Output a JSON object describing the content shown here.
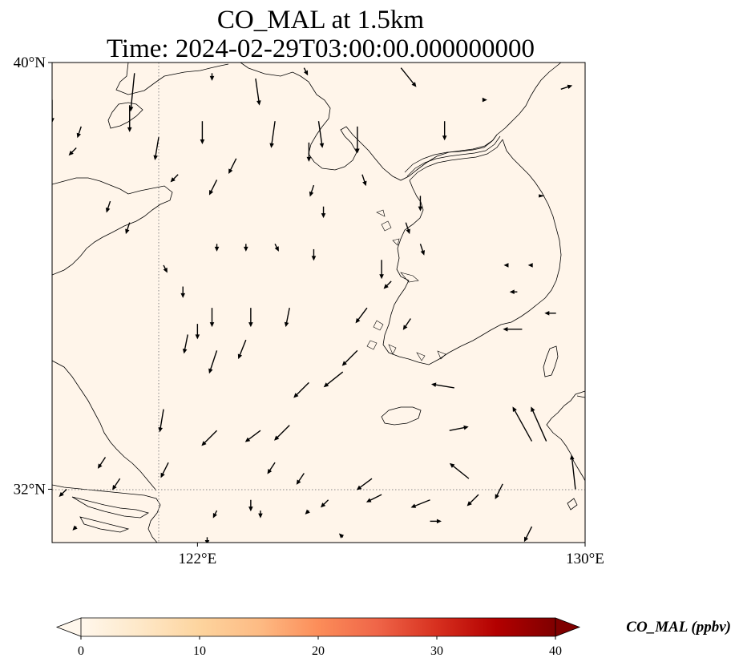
{
  "title": {
    "line1": "CO_MAL at 1.5km",
    "line2": "Time: 2024-02-29T03:00:00.000000000"
  },
  "map": {
    "extent": {
      "lon_min": 119,
      "lon_max": 130,
      "lat_min": 31,
      "lat_max": 40
    },
    "background_color": "#fff5ea",
    "gridlines": {
      "lons": [
        122
      ],
      "lats": [
        32
      ],
      "style": "dotted",
      "color": "#888888"
    },
    "lat_ticks": [
      {
        "value": 40,
        "label": "40°N"
      },
      {
        "value": 32,
        "label": "32°N"
      }
    ],
    "lon_ticks": [
      {
        "value": 122,
        "label": "122°E"
      },
      {
        "value": 130,
        "label": "130°E"
      }
    ],
    "features": [
      "coastline",
      "country borders"
    ],
    "wind_vectors": [
      {
        "lon": 120.7,
        "lat": 39.8,
        "u": -0.1,
        "v": -1.0
      },
      {
        "lon": 122.3,
        "lat": 39.8,
        "u": 0.0,
        "v": -0.2
      },
      {
        "lon": 123.2,
        "lat": 39.7,
        "u": 0.1,
        "v": -0.7
      },
      {
        "lon": 124.2,
        "lat": 39.9,
        "u": 0.1,
        "v": -0.2
      },
      {
        "lon": 126.2,
        "lat": 39.9,
        "u": 0.4,
        "v": -0.5
      },
      {
        "lon": 127.9,
        "lat": 39.3,
        "u": 0.1,
        "v": 0.0
      },
      {
        "lon": 129.5,
        "lat": 39.5,
        "u": 0.3,
        "v": 0.1
      },
      {
        "lon": 119.0,
        "lat": 39.3,
        "u": 0.0,
        "v": -0.6
      },
      {
        "lon": 120.6,
        "lat": 39.2,
        "u": 0.0,
        "v": -0.7
      },
      {
        "lon": 119.6,
        "lat": 38.8,
        "u": -0.1,
        "v": -0.3
      },
      {
        "lon": 122.1,
        "lat": 38.9,
        "u": 0.0,
        "v": -0.6
      },
      {
        "lon": 123.6,
        "lat": 38.9,
        "u": -0.1,
        "v": -0.7
      },
      {
        "lon": 124.5,
        "lat": 38.9,
        "u": 0.1,
        "v": -0.7
      },
      {
        "lon": 125.3,
        "lat": 38.8,
        "u": 0.0,
        "v": -0.7
      },
      {
        "lon": 127.1,
        "lat": 38.9,
        "u": 0.0,
        "v": -0.5
      },
      {
        "lon": 121.2,
        "lat": 38.6,
        "u": -0.1,
        "v": -0.6
      },
      {
        "lon": 119.5,
        "lat": 38.4,
        "u": -0.2,
        "v": -0.2
      },
      {
        "lon": 122.8,
        "lat": 38.2,
        "u": -0.2,
        "v": -0.4
      },
      {
        "lon": 124.3,
        "lat": 38.5,
        "u": 0.0,
        "v": -0.5
      },
      {
        "lon": 122.4,
        "lat": 37.8,
        "u": -0.2,
        "v": -0.4
      },
      {
        "lon": 121.6,
        "lat": 37.9,
        "u": -0.2,
        "v": -0.2
      },
      {
        "lon": 124.4,
        "lat": 37.7,
        "u": -0.1,
        "v": -0.3
      },
      {
        "lon": 125.4,
        "lat": 37.9,
        "u": 0.1,
        "v": -0.3
      },
      {
        "lon": 126.6,
        "lat": 37.5,
        "u": 0.0,
        "v": -0.4
      },
      {
        "lon": 129.1,
        "lat": 37.5,
        "u": 0.0,
        "v": 0.0
      },
      {
        "lon": 120.2,
        "lat": 37.4,
        "u": -0.1,
        "v": -0.3
      },
      {
        "lon": 120.6,
        "lat": 37.0,
        "u": -0.1,
        "v": -0.3
      },
      {
        "lon": 124.6,
        "lat": 37.3,
        "u": 0.0,
        "v": -0.3
      },
      {
        "lon": 126.3,
        "lat": 37.0,
        "u": 0.1,
        "v": -0.3
      },
      {
        "lon": 122.4,
        "lat": 36.6,
        "u": 0.0,
        "v": -0.2
      },
      {
        "lon": 123.0,
        "lat": 36.6,
        "u": 0.0,
        "v": -0.2
      },
      {
        "lon": 123.6,
        "lat": 36.6,
        "u": 0.1,
        "v": -0.2
      },
      {
        "lon": 124.4,
        "lat": 36.5,
        "u": 0.0,
        "v": -0.3
      },
      {
        "lon": 125.8,
        "lat": 36.3,
        "u": 0.0,
        "v": -0.5
      },
      {
        "lon": 126.6,
        "lat": 36.6,
        "u": 0.1,
        "v": -0.3
      },
      {
        "lon": 128.4,
        "lat": 36.2,
        "u": -0.1,
        "v": 0.0
      },
      {
        "lon": 128.9,
        "lat": 36.2,
        "u": -0.1,
        "v": 0.0
      },
      {
        "lon": 121.3,
        "lat": 36.2,
        "u": 0.1,
        "v": -0.2
      },
      {
        "lon": 121.7,
        "lat": 35.8,
        "u": 0.0,
        "v": -0.3
      },
      {
        "lon": 122.3,
        "lat": 35.4,
        "u": 0.0,
        "v": -0.5
      },
      {
        "lon": 123.1,
        "lat": 35.4,
        "u": 0.0,
        "v": -0.5
      },
      {
        "lon": 123.9,
        "lat": 35.4,
        "u": -0.1,
        "v": -0.5
      },
      {
        "lon": 125.5,
        "lat": 35.4,
        "u": -0.3,
        "v": -0.4
      },
      {
        "lon": 126.0,
        "lat": 35.9,
        "u": -0.2,
        "v": -0.2
      },
      {
        "lon": 126.4,
        "lat": 35.2,
        "u": -0.2,
        "v": -0.3
      },
      {
        "lon": 128.7,
        "lat": 35.0,
        "u": -0.5,
        "v": 0.0
      },
      {
        "lon": 129.4,
        "lat": 35.3,
        "u": -0.3,
        "v": 0.0
      },
      {
        "lon": 128.6,
        "lat": 35.7,
        "u": -0.2,
        "v": 0.0
      },
      {
        "lon": 122.0,
        "lat": 35.1,
        "u": 0.0,
        "v": -0.4
      },
      {
        "lon": 121.8,
        "lat": 34.9,
        "u": -0.1,
        "v": -0.5
      },
      {
        "lon": 122.4,
        "lat": 34.6,
        "u": -0.2,
        "v": -0.6
      },
      {
        "lon": 123.0,
        "lat": 34.8,
        "u": -0.2,
        "v": -0.5
      },
      {
        "lon": 125.3,
        "lat": 34.6,
        "u": -0.4,
        "v": -0.4
      },
      {
        "lon": 125.0,
        "lat": 34.2,
        "u": -0.5,
        "v": -0.4
      },
      {
        "lon": 124.3,
        "lat": 34.0,
        "u": -0.4,
        "v": -0.4
      },
      {
        "lon": 127.3,
        "lat": 33.9,
        "u": -0.6,
        "v": 0.1
      },
      {
        "lon": 121.3,
        "lat": 33.5,
        "u": -0.1,
        "v": -0.6
      },
      {
        "lon": 122.4,
        "lat": 33.1,
        "u": -0.4,
        "v": -0.4
      },
      {
        "lon": 123.3,
        "lat": 33.1,
        "u": -0.4,
        "v": -0.3
      },
      {
        "lon": 123.9,
        "lat": 33.2,
        "u": -0.4,
        "v": -0.4
      },
      {
        "lon": 127.2,
        "lat": 33.1,
        "u": 0.5,
        "v": 0.1
      },
      {
        "lon": 128.9,
        "lat": 32.9,
        "u": -0.5,
        "v": 0.9
      },
      {
        "lon": 129.2,
        "lat": 32.9,
        "u": -0.4,
        "v": 0.9
      },
      {
        "lon": 120.1,
        "lat": 32.6,
        "u": -0.2,
        "v": -0.3
      },
      {
        "lon": 120.4,
        "lat": 32.2,
        "u": -0.2,
        "v": -0.3
      },
      {
        "lon": 121.4,
        "lat": 32.5,
        "u": -0.2,
        "v": -0.4
      },
      {
        "lon": 123.6,
        "lat": 32.5,
        "u": -0.2,
        "v": -0.3
      },
      {
        "lon": 124.2,
        "lat": 32.3,
        "u": -0.2,
        "v": -0.3
      },
      {
        "lon": 125.6,
        "lat": 32.2,
        "u": -0.4,
        "v": -0.3
      },
      {
        "lon": 127.6,
        "lat": 32.2,
        "u": -0.5,
        "v": 0.4
      },
      {
        "lon": 129.8,
        "lat": 32.0,
        "u": -0.1,
        "v": 0.9
      },
      {
        "lon": 119.3,
        "lat": 32.0,
        "u": -0.2,
        "v": -0.2
      },
      {
        "lon": 123.1,
        "lat": 31.8,
        "u": 0.0,
        "v": -0.3
      },
      {
        "lon": 124.7,
        "lat": 31.8,
        "u": -0.2,
        "v": -0.2
      },
      {
        "lon": 125.8,
        "lat": 31.9,
        "u": -0.4,
        "v": -0.2
      },
      {
        "lon": 126.8,
        "lat": 31.8,
        "u": -0.5,
        "v": -0.2
      },
      {
        "lon": 127.8,
        "lat": 31.9,
        "u": -0.3,
        "v": -0.3
      },
      {
        "lon": 128.3,
        "lat": 32.1,
        "u": -0.2,
        "v": -0.4
      },
      {
        "lon": 119.5,
        "lat": 31.3,
        "u": -0.1,
        "v": -0.1
      },
      {
        "lon": 122.4,
        "lat": 31.6,
        "u": -0.1,
        "v": -0.2
      },
      {
        "lon": 123.3,
        "lat": 31.6,
        "u": 0.0,
        "v": -0.2
      },
      {
        "lon": 124.3,
        "lat": 31.6,
        "u": -0.1,
        "v": -0.1
      },
      {
        "lon": 126.8,
        "lat": 31.4,
        "u": 0.3,
        "v": 0.0
      },
      {
        "lon": 128.9,
        "lat": 31.3,
        "u": -0.2,
        "v": -0.4
      },
      {
        "lon": 122.2,
        "lat": 31.1,
        "u": 0.0,
        "v": -0.2
      },
      {
        "lon": 125.0,
        "lat": 31.1,
        "u": -0.1,
        "v": 0.1
      }
    ]
  },
  "colorbar": {
    "label": "CO_MAL (ppbv)",
    "min": 0,
    "max": 40,
    "extend": "both",
    "colormap": "OrRd",
    "colors": [
      "#fff7ec",
      "#fee8c8",
      "#fdd49e",
      "#fdbb84",
      "#fc8d59",
      "#ef6548",
      "#d7301f",
      "#b30000",
      "#7f0000"
    ],
    "ticks": [
      {
        "value": 0,
        "label": "0"
      },
      {
        "value": 10,
        "label": "10"
      },
      {
        "value": 20,
        "label": "20"
      },
      {
        "value": 30,
        "label": "30"
      },
      {
        "value": 40,
        "label": "40"
      }
    ]
  }
}
